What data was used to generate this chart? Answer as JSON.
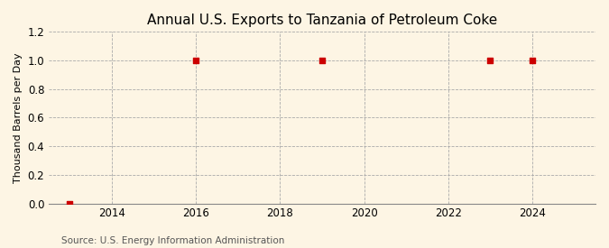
{
  "title": "Annual U.S. Exports to Tanzania of Petroleum Coke",
  "ylabel": "Thousand Barrels per Day",
  "source": "Source: U.S. Energy Information Administration",
  "x_data": [
    2013,
    2016,
    2019,
    2023,
    2024
  ],
  "y_data": [
    0,
    1,
    1,
    1,
    1
  ],
  "xlim": [
    2012.5,
    2025.5
  ],
  "ylim": [
    0,
    1.2
  ],
  "yticks": [
    0.0,
    0.2,
    0.4,
    0.6,
    0.8,
    1.0,
    1.2
  ],
  "xticks": [
    2014,
    2016,
    2018,
    2020,
    2022,
    2024
  ],
  "bg_color": "#fdf5e4",
  "marker_color": "#cc0000",
  "grid_color": "#aaaaaa",
  "title_fontsize": 11,
  "label_fontsize": 8,
  "tick_fontsize": 8.5,
  "source_fontsize": 7.5
}
